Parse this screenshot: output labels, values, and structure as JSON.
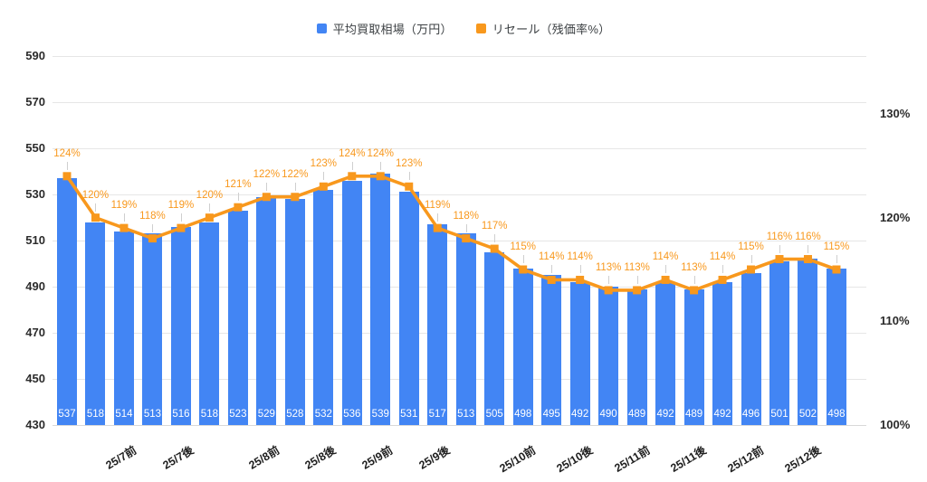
{
  "legend": {
    "bar_series_label": "平均買取相場（万円）",
    "line_series_label": "リセール（残価率%）"
  },
  "colors": {
    "bar": "#4285F4",
    "line": "#F8981D",
    "grid": "#e6e6e6",
    "axis_text": "#2b2b2b",
    "bar_value_text": "#ffffff"
  },
  "chart_data": {
    "type": "bar",
    "subtype": "combo-bar-line-dual-axis",
    "x_labels": [
      "25/7前",
      "25/7後",
      "25/8前",
      "25/8後",
      "25/9前",
      "25/9後",
      "25/10前",
      "25/10後",
      "25/11前",
      "25/11後",
      "25/12前",
      "25/12後"
    ],
    "x_label_anchor_bars": [
      2,
      4,
      7,
      9,
      11,
      13,
      16,
      18,
      20,
      22,
      24,
      26
    ],
    "series": [
      {
        "name": "平均買取相場（万円）",
        "type": "bar",
        "axis": "left",
        "color": "#4285F4",
        "values": [
          537,
          518,
          514,
          513,
          516,
          518,
          523,
          529,
          528,
          532,
          536,
          539,
          531,
          517,
          513,
          505,
          498,
          495,
          492,
          490,
          489,
          492,
          489,
          492,
          496,
          501,
          502,
          498
        ]
      },
      {
        "name": "リセール（残価率%）",
        "type": "line",
        "axis": "right",
        "color": "#F8981D",
        "unit": "%",
        "values": [
          124,
          120,
          119,
          118,
          119,
          120,
          121,
          122,
          122,
          123,
          124,
          124,
          123,
          119,
          118,
          117,
          115,
          114,
          114,
          113,
          113,
          114,
          113,
          114,
          115,
          116,
          116,
          115
        ]
      }
    ],
    "left_axis": {
      "min": 430,
      "max": 590,
      "ticks": [
        590,
        570,
        550,
        530,
        510,
        490,
        470,
        450,
        430
      ]
    },
    "right_axis": {
      "min": 100,
      "max": 130,
      "ticks": [
        "130%",
        "120%",
        "110%",
        "100%"
      ],
      "tick_values": [
        130,
        120,
        110,
        100
      ]
    },
    "grid": true,
    "legend_position": "top",
    "bar_value_labels_visible": true,
    "line_value_labels_visible": true
  }
}
